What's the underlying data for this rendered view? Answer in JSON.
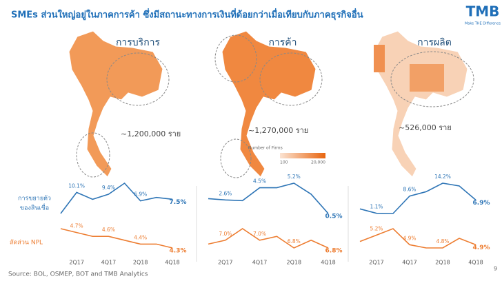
{
  "header": {
    "title": "SMEs ส่วนใหญ่อยู่ในภาคการค้า ซึ่งมีสถานะทางการเงินที่ด้อยกว่าเมื่อเทียบกับภาคธุรกิจอื่น",
    "logo": "TMB",
    "tagline": "Make THE Difference"
  },
  "row_labels": {
    "growth": [
      "การขยายตัว",
      "ของสินเชื่อ"
    ],
    "npl": "สัดส่วน NPL"
  },
  "map_legend": {
    "title": "Number of Firms",
    "min": "100",
    "max": "20,000"
  },
  "footer": {
    "source": "Source: BOL, OSMEP, BOT and TMB Analytics",
    "page": "9"
  },
  "chart_data": [
    {
      "type": "line",
      "title": "การบริการ",
      "annotation": "~1,200,000 ราย",
      "categories": [
        null,
        "2Q17",
        null,
        "4Q17",
        null,
        "2Q18",
        null,
        "4Q18"
      ],
      "series": [
        {
          "color": "#2e75b6",
          "values": [
            2.1,
            10.1,
            7.5,
            9.4,
            13.6,
            6.9,
            8.2,
            7.5
          ],
          "value_labels": [
            null,
            "10.1%",
            null,
            "9.4%",
            null,
            "6.9%",
            null,
            "7.5%"
          ]
        },
        {
          "color": "#ed7d31",
          "values": [
            4.8,
            4.7,
            4.6,
            4.6,
            4.5,
            4.4,
            4.4,
            4.3
          ],
          "value_labels": [
            null,
            "4.7%",
            null,
            "4.6%",
            null,
            "4.4%",
            null,
            "4.3%"
          ]
        }
      ]
    },
    {
      "type": "line",
      "title": "การค้า",
      "annotation": "~1,270,000 ราย",
      "categories": [
        null,
        "2Q17",
        null,
        "4Q17",
        null,
        "2Q18",
        null,
        "4Q18"
      ],
      "series": [
        {
          "color": "#2e75b6",
          "values": [
            2.8,
            2.6,
            2.5,
            4.5,
            4.5,
            5.2,
            3.5,
            0.5
          ],
          "value_labels": [
            null,
            "2.6%",
            null,
            "4.5%",
            null,
            "5.2%",
            null,
            "0.5%"
          ]
        },
        {
          "color": "#ed7d31",
          "values": [
            6.9,
            7.0,
            7.3,
            7.0,
            7.1,
            6.8,
            7.0,
            6.8
          ],
          "value_labels": [
            null,
            "7.0%",
            null,
            "7.0%",
            null,
            "6.8%",
            null,
            "6.8%"
          ]
        }
      ]
    },
    {
      "type": "line",
      "title": "การผลิต",
      "annotation": "~526,000 ราย",
      "categories": [
        null,
        "2Q17",
        null,
        "4Q17",
        null,
        "2Q18",
        null,
        "4Q18"
      ],
      "series": [
        {
          "color": "#2e75b6",
          "values": [
            3.0,
            1.1,
            1.0,
            8.6,
            10.5,
            14.2,
            13.0,
            6.9
          ],
          "value_labels": [
            null,
            "1.1%",
            null,
            "8.6%",
            null,
            "14.2%",
            null,
            "6.9%"
          ]
        },
        {
          "color": "#ed7d31",
          "values": [
            5.0,
            5.2,
            5.4,
            4.9,
            4.8,
            4.8,
            5.1,
            4.9
          ],
          "value_labels": [
            null,
            "5.2%",
            null,
            "4.9%",
            null,
            "4.8%",
            null,
            "4.9%"
          ]
        }
      ]
    }
  ]
}
